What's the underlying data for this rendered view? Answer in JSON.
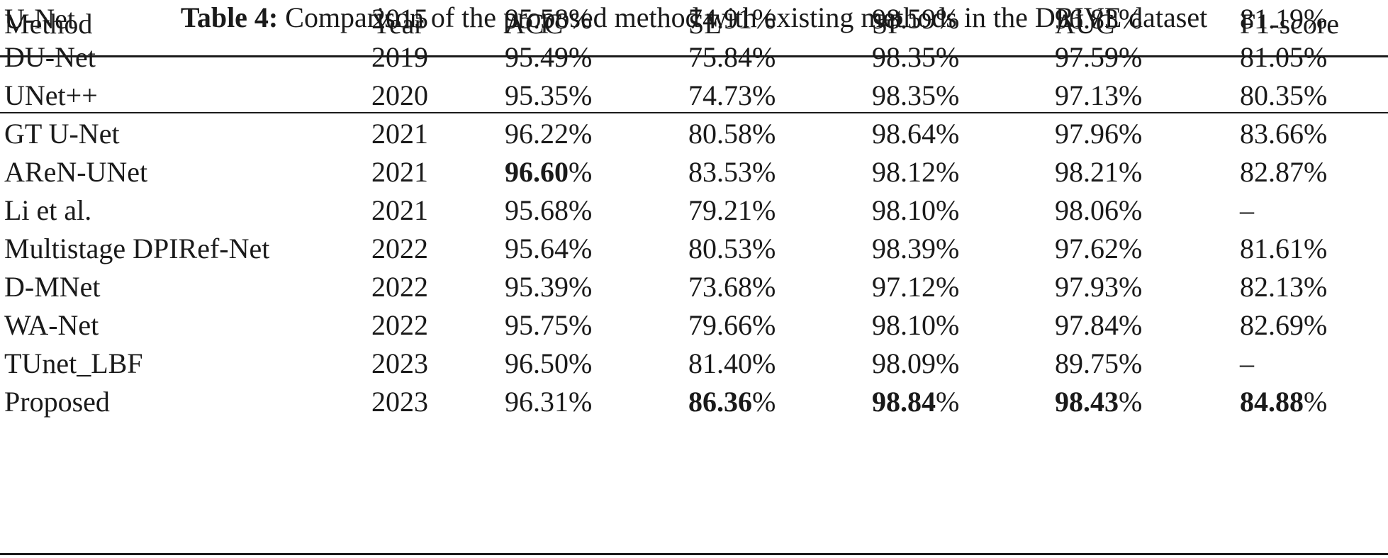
{
  "caption": {
    "label": "Table 4:",
    "text": "Comparison of the proposed method with existing methods in the DRIVE dataset"
  },
  "table": {
    "headers": [
      "Method",
      "Year",
      "ACC",
      "SE",
      "SP",
      "AUC",
      "F1-score"
    ],
    "rows": [
      {
        "method": "U-Net",
        "year": "2015",
        "acc": "95.58",
        "se": "74.91",
        "sp": "98.59",
        "auc": "96.83",
        "f1": "81.19"
      },
      {
        "method": "DU-Net",
        "year": "2019",
        "acc": "95.49",
        "se": "75.84",
        "sp": "98.35",
        "auc": "97.59",
        "f1": "81.05"
      },
      {
        "method": "UNet++",
        "year": "2020",
        "acc": "95.35",
        "se": "74.73",
        "sp": "98.35",
        "auc": "97.13",
        "f1": "80.35"
      },
      {
        "method": "GT U-Net",
        "year": "2021",
        "acc": "96.22",
        "se": "80.58",
        "sp": "98.64",
        "auc": "97.96",
        "f1": "83.66"
      },
      {
        "method": "AReN-UNet",
        "year": "2021",
        "acc": "96.60",
        "se": "83.53",
        "sp": "98.12",
        "auc": "98.21",
        "f1": "82.87"
      },
      {
        "method": "Li et al.",
        "year": "2021",
        "acc": "95.68",
        "se": "79.21",
        "sp": "98.10",
        "auc": "98.06",
        "f1": "–"
      },
      {
        "method": "Multistage DPIRef-Net",
        "year": "2022",
        "acc": "95.64",
        "se": "80.53",
        "sp": "98.39",
        "auc": "97.62",
        "f1": "81.61"
      },
      {
        "method": "D-MNet",
        "year": "2022",
        "acc": "95.39",
        "se": "73.68",
        "sp": "97.12",
        "auc": "97.93",
        "f1": "82.13"
      },
      {
        "method": "WA-Net",
        "year": "2022",
        "acc": "95.75",
        "se": "79.66",
        "sp": "98.10",
        "auc": "97.84",
        "f1": "82.69"
      },
      {
        "method": "TUnet_LBF",
        "year": "2023",
        "acc": "96.50",
        "se": "81.40",
        "sp": "98.09",
        "auc": "89.75",
        "f1": "–"
      },
      {
        "method": "Proposed",
        "year": "2023",
        "acc": "96.31",
        "se": "86.36",
        "sp": "98.84",
        "auc": "98.43",
        "f1": "84.88"
      }
    ],
    "percent_suffix": "%",
    "bold_cells": [
      {
        "row": 4,
        "col": "acc"
      },
      {
        "row": 10,
        "col": "se"
      },
      {
        "row": 10,
        "col": "sp"
      },
      {
        "row": 10,
        "col": "auc"
      },
      {
        "row": 10,
        "col": "f1"
      }
    ]
  }
}
